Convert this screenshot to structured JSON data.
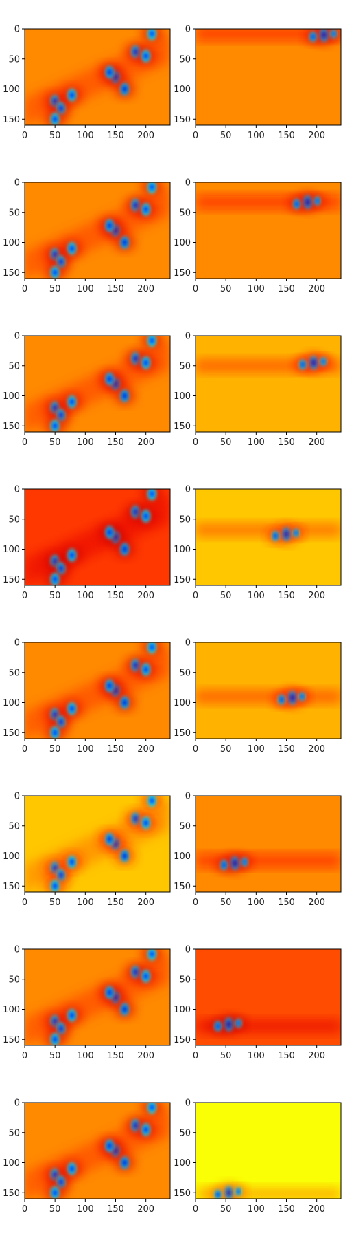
{
  "chart_data": {
    "type": "heatmap",
    "colormap": "jet",
    "layout": {
      "rows": 8,
      "cols": 2
    },
    "title": "",
    "xlabel": "",
    "ylabel": "",
    "xlim": [
      0,
      240
    ],
    "ylim": [
      160,
      0
    ],
    "x_ticks": [
      0,
      50,
      100,
      150,
      200
    ],
    "y_ticks": [
      0,
      50,
      100,
      150
    ],
    "left_background": [
      0.74,
      0.74,
      0.74,
      0.82,
      0.74,
      0.68,
      0.74,
      0.74
    ],
    "right_background": [
      0.74,
      0.74,
      0.7,
      0.68,
      0.7,
      0.74,
      0.8,
      0.62
    ],
    "common_blobs": [
      {
        "x": 150,
        "y": 80,
        "intensity": 0.95
      },
      {
        "x": 165,
        "y": 100,
        "intensity": 0.9
      },
      {
        "x": 140,
        "y": 72,
        "intensity": 0.8
      },
      {
        "x": 183,
        "y": 38,
        "intensity": 0.8
      },
      {
        "x": 200,
        "y": 45,
        "intensity": 0.6
      },
      {
        "x": 50,
        "y": 120,
        "intensity": 0.75
      },
      {
        "x": 60,
        "y": 132,
        "intensity": 0.7
      },
      {
        "x": 78,
        "y": 110,
        "intensity": 0.6
      },
      {
        "x": 50,
        "y": 150,
        "intensity": 0.6
      },
      {
        "x": 210,
        "y": 8,
        "intensity": 0.5
      }
    ],
    "right_blobs": [
      {
        "x": 212,
        "y": 10,
        "intensity": 0.9,
        "band": 8
      },
      {
        "x": 185,
        "y": 33,
        "intensity": 0.95,
        "band": 33
      },
      {
        "x": 195,
        "y": 45,
        "intensity": 0.9,
        "band": 50
      },
      {
        "x": 150,
        "y": 75,
        "intensity": 0.95,
        "band": 68
      },
      {
        "x": 160,
        "y": 92,
        "intensity": 0.95,
        "band": 90
      },
      {
        "x": 65,
        "y": 112,
        "intensity": 0.95,
        "band": 108
      },
      {
        "x": 55,
        "y": 125,
        "intensity": 0.95,
        "band": 128
      },
      {
        "x": 55,
        "y": 150,
        "intensity": 0.95,
        "band": 152
      }
    ]
  }
}
